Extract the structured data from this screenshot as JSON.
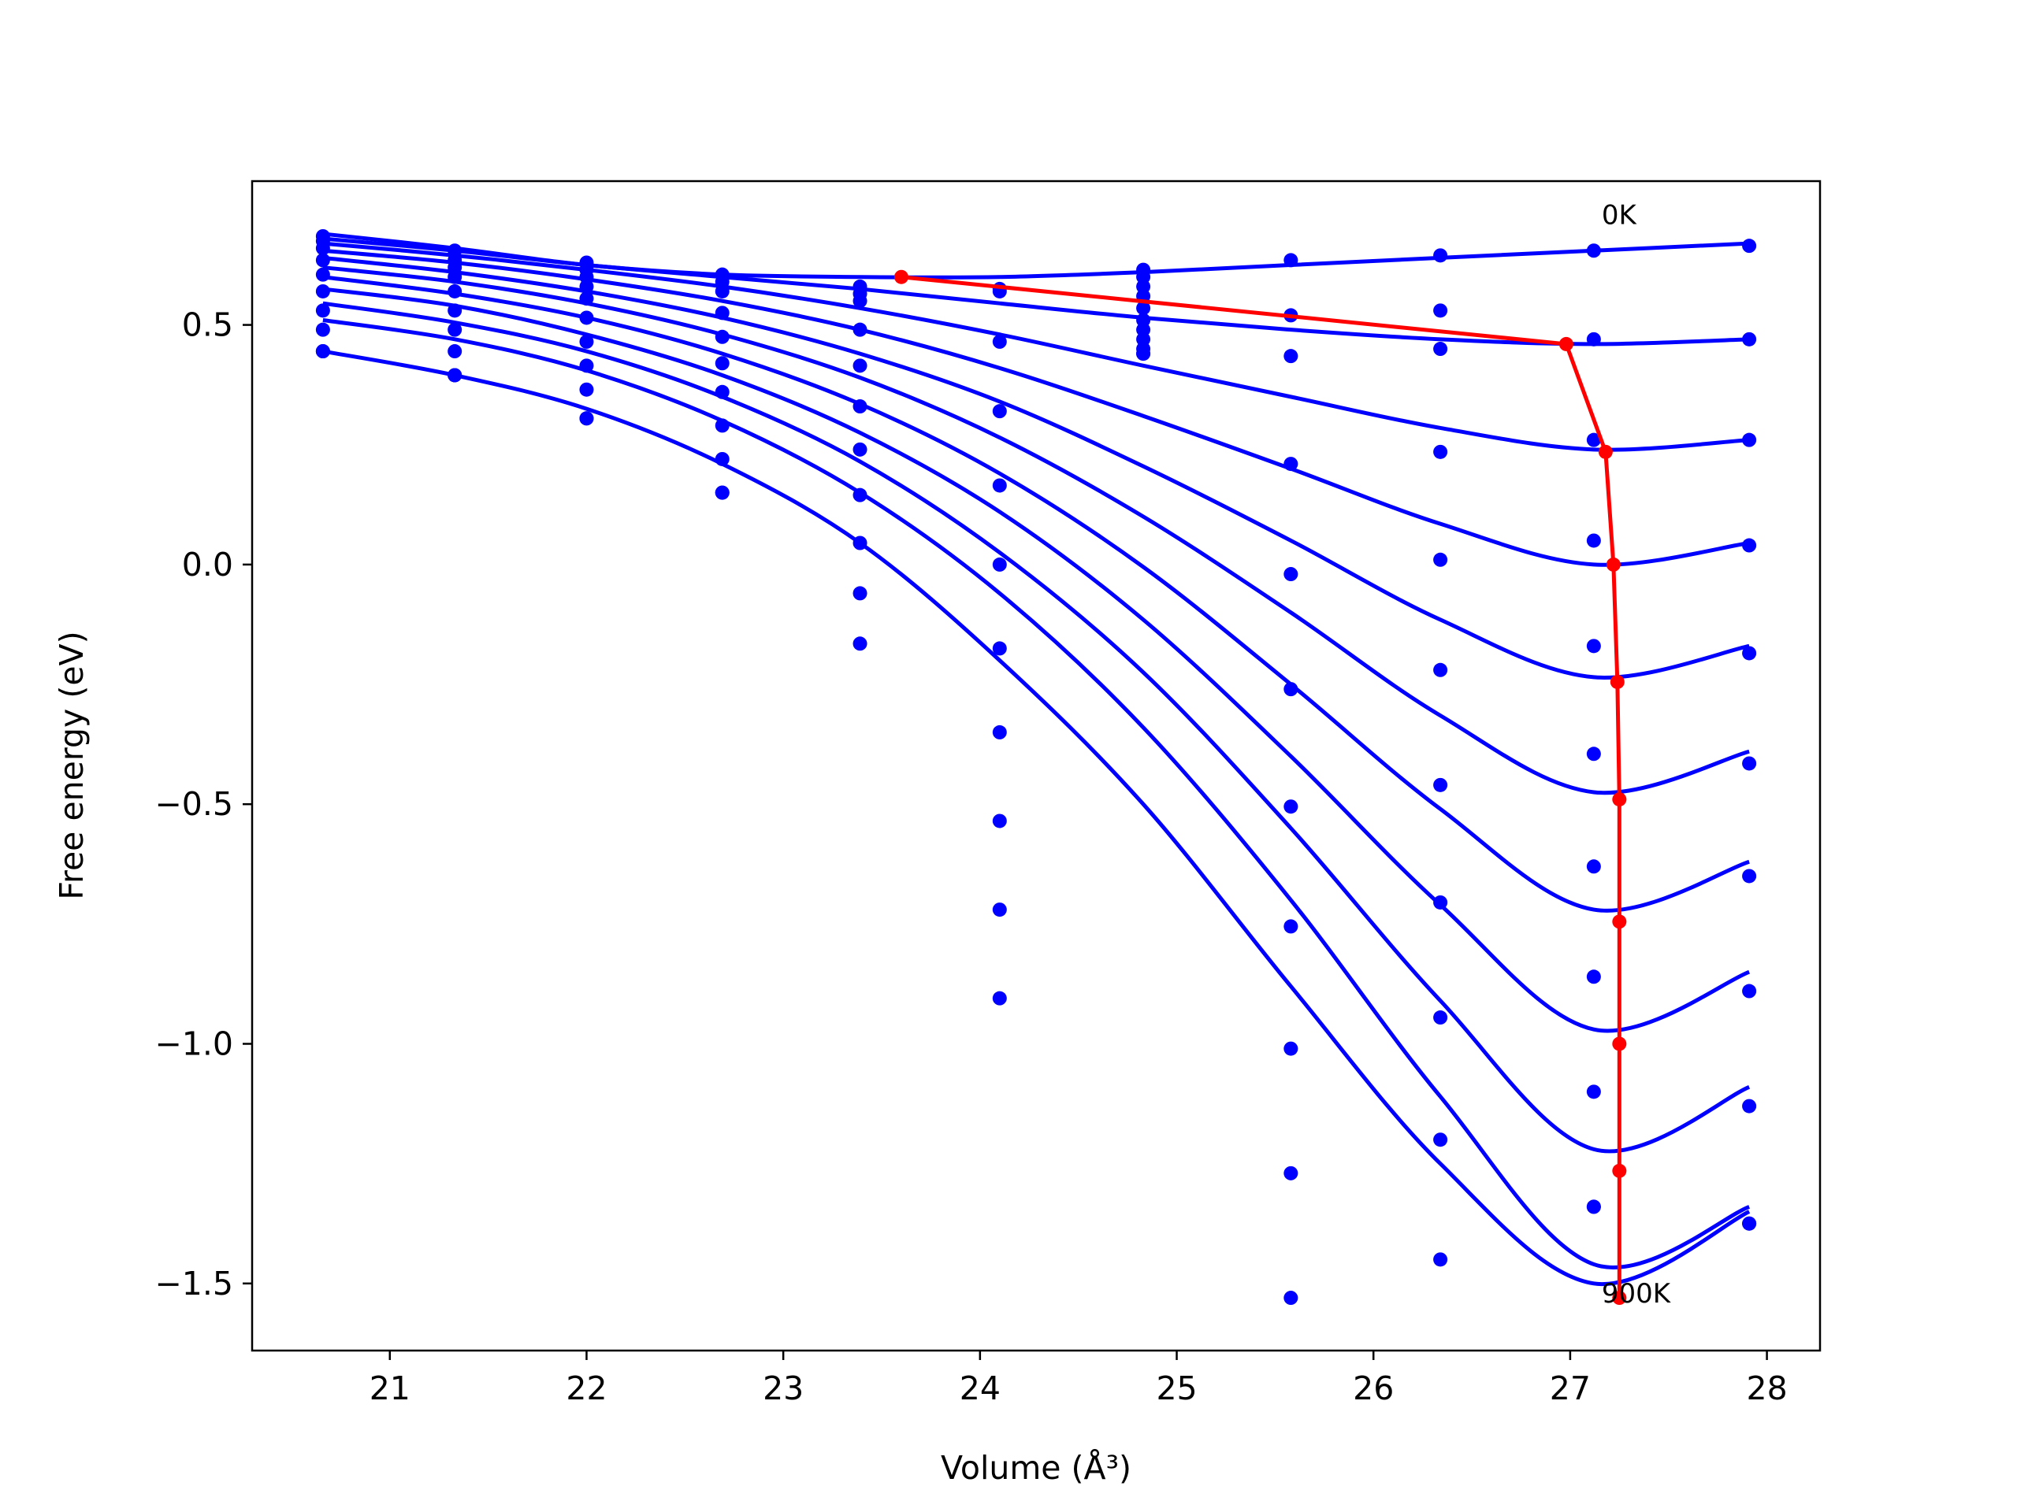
{
  "chart_data": {
    "type": "scatter",
    "title": "",
    "xlabel": "Volume (Å³)",
    "ylabel": "Free energy (eV)",
    "xlim": [
      20.3,
      28.27
    ],
    "ylim": [
      -1.64,
      0.8
    ],
    "xticks": [
      21,
      22,
      23,
      24,
      25,
      26,
      27,
      28
    ],
    "yticks": [
      0.5,
      0.0,
      -0.5,
      -1.0,
      -1.5
    ],
    "ytick_labels": [
      "0.5",
      "0.0",
      "−0.5",
      "−1.0",
      "−1.5"
    ],
    "grid": false,
    "legend": "none",
    "colors": {
      "points": "#0000ff",
      "fits": "#0000ff",
      "minimum_path": "#ff0000"
    },
    "volumes": [
      20.66,
      21.33,
      22.0,
      22.69,
      23.39,
      24.1,
      24.83,
      25.58,
      26.34,
      27.12,
      27.91
    ],
    "series": [
      {
        "temperature_label": "0K",
        "values": [
          0.685,
          0.655,
          0.63,
          0.605,
          0.58,
          0.575,
          0.615,
          0.635,
          0.645,
          0.655,
          0.665
        ]
      },
      {
        "values": [
          0.675,
          0.635,
          0.615,
          0.59,
          0.565,
          0.57,
          0.6,
          0.52,
          0.53,
          0.47,
          0.47
        ]
      },
      {
        "values": [
          0.66,
          0.62,
          0.6,
          0.57,
          0.55,
          0.465,
          0.58,
          0.435,
          0.45,
          0.26,
          0.26
        ]
      },
      {
        "values": [
          0.635,
          0.6,
          0.58,
          0.525,
          0.49,
          0.32,
          0.56,
          0.21,
          0.235,
          0.05,
          0.04
        ]
      },
      {
        "values": [
          0.605,
          0.57,
          0.555,
          0.475,
          0.415,
          0.165,
          0.535,
          -0.02,
          0.01,
          -0.17,
          -0.185
        ]
      },
      {
        "values": [
          0.57,
          0.53,
          0.515,
          0.42,
          0.33,
          0.0,
          0.51,
          -0.26,
          -0.22,
          -0.395,
          -0.415
        ]
      },
      {
        "values": [
          0.53,
          0.49,
          0.465,
          0.36,
          0.24,
          -0.175,
          0.49,
          -0.505,
          -0.46,
          -0.63,
          -0.65
        ]
      },
      {
        "values": [
          0.49,
          0.445,
          0.415,
          0.29,
          0.145,
          -0.35,
          0.47,
          -0.755,
          -0.705,
          -0.86,
          -0.89
        ]
      },
      {
        "values": [
          0.445,
          0.395,
          0.365,
          0.22,
          0.045,
          -0.535,
          0.45,
          -1.01,
          -0.945,
          -1.1,
          -1.13
        ]
      },
      {
        "temperature_label": "900K",
        "values": [
          0.445,
          0.395,
          0.305,
          0.15,
          -0.06,
          -0.72,
          0.44,
          -1.27,
          -1.2,
          -1.34,
          -1.375
        ]
      },
      {
        "values": [
          0.445,
          0.395,
          0.305,
          0.15,
          -0.165,
          -0.905,
          0.44,
          -1.53,
          -1.45,
          -1.34,
          -1.375
        ]
      }
    ],
    "fit_curves": [
      {
        "x": [
          20.66,
          21.33,
          22.0,
          22.69,
          23.39,
          24.1,
          24.83,
          25.58,
          26.34,
          27.12,
          27.91
        ],
        "y": [
          0.69,
          0.66,
          0.625,
          0.605,
          0.6,
          0.6,
          0.61,
          0.625,
          0.64,
          0.655,
          0.67
        ]
      },
      {
        "x": [
          20.66,
          21.33,
          22.0,
          22.69,
          23.39,
          24.1,
          24.83,
          25.58,
          26.34,
          27.12,
          27.91
        ],
        "y": [
          0.68,
          0.655,
          0.625,
          0.6,
          0.575,
          0.545,
          0.515,
          0.49,
          0.47,
          0.46,
          0.47
        ]
      },
      {
        "x": [
          20.66,
          21.33,
          22.0,
          22.69,
          23.39,
          24.1,
          24.83,
          25.58,
          26.34,
          27.12,
          27.91
        ],
        "y": [
          0.67,
          0.645,
          0.615,
          0.58,
          0.535,
          0.48,
          0.415,
          0.35,
          0.285,
          0.24,
          0.26
        ]
      },
      {
        "x": [
          20.66,
          21.33,
          22.0,
          22.69,
          23.39,
          24.1,
          24.83,
          25.58,
          26.34,
          27.12,
          27.91
        ],
        "y": [
          0.655,
          0.63,
          0.595,
          0.55,
          0.49,
          0.41,
          0.31,
          0.2,
          0.085,
          0.0,
          0.045
        ]
      },
      {
        "x": [
          20.66,
          21.33,
          22.0,
          22.69,
          23.39,
          24.1,
          24.83,
          25.58,
          26.34,
          27.12,
          27.91
        ],
        "y": [
          0.64,
          0.61,
          0.57,
          0.515,
          0.44,
          0.34,
          0.205,
          0.05,
          -0.115,
          -0.235,
          -0.17
        ]
      },
      {
        "x": [
          20.66,
          21.33,
          22.0,
          22.69,
          23.39,
          24.1,
          24.83,
          25.58,
          26.34,
          27.12,
          27.91
        ],
        "y": [
          0.62,
          0.59,
          0.545,
          0.48,
          0.39,
          0.265,
          0.1,
          -0.1,
          -0.315,
          -0.475,
          -0.39
        ]
      },
      {
        "x": [
          20.66,
          21.33,
          22.0,
          22.69,
          23.39,
          24.1,
          24.83,
          25.58,
          26.34,
          27.12,
          27.91
        ],
        "y": [
          0.6,
          0.565,
          0.515,
          0.44,
          0.335,
          0.19,
          -0.005,
          -0.25,
          -0.51,
          -0.72,
          -0.62
        ]
      },
      {
        "x": [
          20.66,
          21.33,
          22.0,
          22.69,
          23.39,
          24.1,
          24.83,
          25.58,
          26.34,
          27.12,
          27.91
        ],
        "y": [
          0.575,
          0.54,
          0.48,
          0.395,
          0.275,
          0.11,
          -0.115,
          -0.4,
          -0.71,
          -0.97,
          -0.85
        ]
      },
      {
        "x": [
          20.66,
          21.33,
          22.0,
          22.69,
          23.39,
          24.1,
          24.83,
          25.58,
          26.34,
          27.12,
          27.91
        ],
        "y": [
          0.545,
          0.505,
          0.445,
          0.35,
          0.215,
          0.025,
          -0.225,
          -0.55,
          -0.91,
          -1.22,
          -1.09
        ]
      },
      {
        "x": [
          20.66,
          21.33,
          22.0,
          22.69,
          23.39,
          24.1,
          24.83,
          25.58,
          26.34,
          27.12,
          27.91
        ],
        "y": [
          0.51,
          0.47,
          0.405,
          0.3,
          0.15,
          -0.06,
          -0.34,
          -0.7,
          -1.11,
          -1.46,
          -1.34
        ]
      },
      {
        "x": [
          20.66,
          21.33,
          22.0,
          22.69,
          23.39,
          24.1,
          24.83,
          25.58,
          26.34,
          27.12,
          27.91
        ],
        "y": [
          0.445,
          0.395,
          0.325,
          0.21,
          0.045,
          -0.2,
          -0.5,
          -0.88,
          -1.25,
          -1.5,
          -1.35
        ]
      }
    ],
    "minimum_path": {
      "x": [
        23.6,
        26.98,
        27.18,
        27.22,
        27.24,
        27.25,
        27.25,
        27.25,
        27.25,
        27.25
      ],
      "y": [
        0.6,
        0.46,
        0.235,
        0.0,
        -0.245,
        -0.49,
        -0.745,
        -1.0,
        -1.265,
        -1.53
      ]
    },
    "annotations": [
      {
        "text": "0K",
        "x": 27.12,
        "y": 0.73
      },
      {
        "text": "900K",
        "x": 27.12,
        "y": -1.52
      }
    ]
  }
}
